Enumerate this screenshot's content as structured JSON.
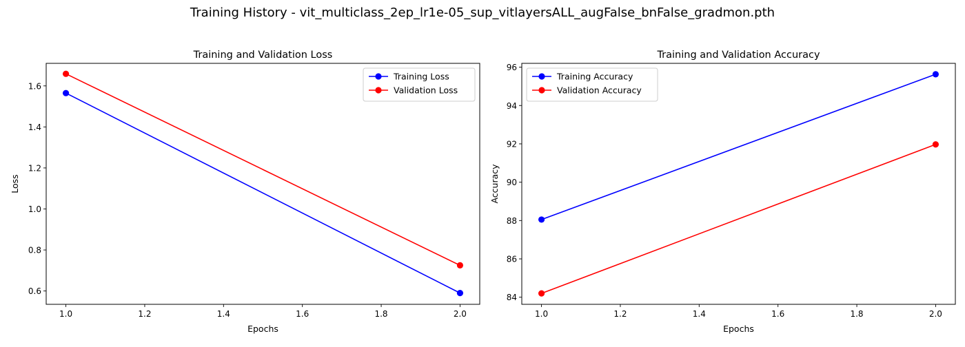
{
  "figure": {
    "suptitle": "Training History - vit_multiclass_2ep_lr1e-05_sup_vitlayersALL_augFalse_bnFalse_gradmon.pth"
  },
  "chart_data": [
    {
      "type": "line",
      "title": "Training and Validation Loss",
      "xlabel": "Epochs",
      "ylabel": "Loss",
      "x": [
        1.0,
        2.0
      ],
      "xlim": [
        0.95,
        2.05
      ],
      "ylim": [
        0.535,
        1.71
      ],
      "xticks": [
        1.0,
        1.2,
        1.4,
        1.6,
        1.8,
        2.0
      ],
      "xtick_labels": [
        "1.0",
        "1.2",
        "1.4",
        "1.6",
        "1.8",
        "2.0"
      ],
      "yticks": [
        0.6,
        0.8,
        1.0,
        1.2,
        1.4,
        1.6
      ],
      "ytick_labels": [
        "0.6",
        "0.8",
        "1.0",
        "1.2",
        "1.4",
        "1.6"
      ],
      "grid": false,
      "legend": "top-right",
      "series": [
        {
          "name": "Training Loss",
          "color": "#0000ff",
          "marker": "circle",
          "values": [
            1.565,
            0.59
          ]
        },
        {
          "name": "Validation Loss",
          "color": "#ff0000",
          "marker": "circle",
          "values": [
            1.659,
            0.725
          ]
        }
      ]
    },
    {
      "type": "line",
      "title": "Training and Validation Accuracy",
      "xlabel": "Epochs",
      "ylabel": "Accuracy",
      "x": [
        1.0,
        2.0
      ],
      "xlim": [
        0.95,
        2.05
      ],
      "ylim": [
        83.63,
        96.2
      ],
      "xticks": [
        1.0,
        1.2,
        1.4,
        1.6,
        1.8,
        2.0
      ],
      "xtick_labels": [
        "1.0",
        "1.2",
        "1.4",
        "1.6",
        "1.8",
        "2.0"
      ],
      "yticks": [
        84,
        86,
        88,
        90,
        92,
        94,
        96
      ],
      "ytick_labels": [
        "84",
        "86",
        "88",
        "90",
        "92",
        "94",
        "96"
      ],
      "grid": false,
      "legend": "top-left",
      "series": [
        {
          "name": "Training Accuracy",
          "color": "#0000ff",
          "marker": "circle",
          "values": [
            88.05,
            95.63
          ]
        },
        {
          "name": "Validation Accuracy",
          "color": "#ff0000",
          "marker": "circle",
          "values": [
            84.2,
            91.97
          ]
        }
      ]
    }
  ]
}
